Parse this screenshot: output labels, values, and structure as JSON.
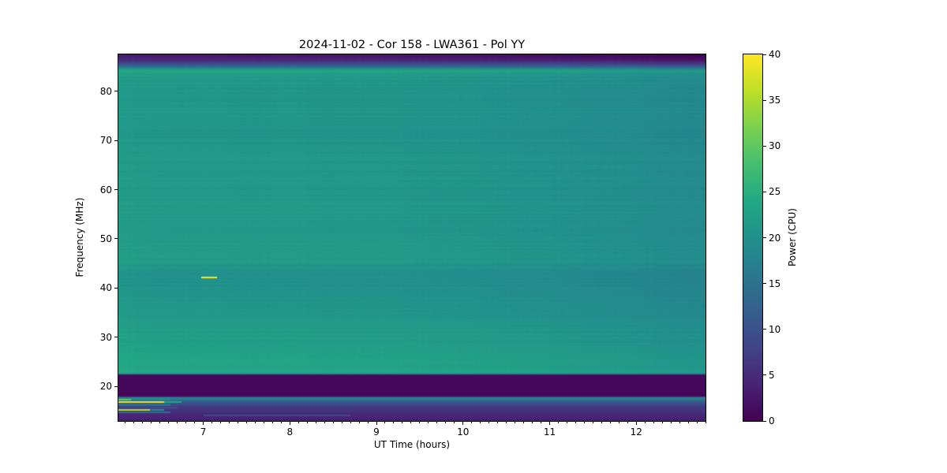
{
  "figure": {
    "background": "#ffffff",
    "text_color": "#000000",
    "spine_color": "#000000"
  },
  "chart_data": {
    "type": "heatmap",
    "title": "2024-11-02 - Cor 158 - LWA361 - Pol YY",
    "xlabel": "UT Time (hours)",
    "ylabel": "Frequency (MHz)",
    "colorbar_label": "Power (CPU)",
    "colormap": "viridis",
    "x_range": [
      6.02,
      12.8
    ],
    "y_range": [
      12.95,
      87.5
    ],
    "color_range": [
      0,
      40
    ],
    "x_ticks": [
      7,
      8,
      9,
      10,
      11,
      12
    ],
    "x_minor_tick_step": 0.1,
    "y_ticks": [
      20,
      30,
      40,
      50,
      60,
      70,
      80
    ],
    "colorbar_ticks": [
      0,
      5,
      10,
      15,
      20,
      25,
      30,
      35,
      40
    ],
    "grid": false,
    "legend": "none",
    "frequency_profile": [
      [
        13.0,
        3.2
      ],
      [
        13.5,
        3.8
      ],
      [
        14.0,
        4.2
      ],
      [
        14.5,
        4.8
      ],
      [
        14.9,
        5.5
      ],
      [
        15.2,
        6.0
      ],
      [
        15.5,
        6.5
      ],
      [
        15.8,
        7.0
      ],
      [
        16.1,
        8.0
      ],
      [
        16.4,
        9.0
      ],
      [
        16.7,
        10.5
      ],
      [
        17.05,
        13.0
      ],
      [
        17.35,
        16.5
      ],
      [
        17.7,
        17.5
      ],
      [
        17.85,
        8.0
      ],
      [
        18.0,
        0.8
      ],
      [
        22.3,
        0.8
      ],
      [
        22.45,
        12.0
      ],
      [
        22.7,
        23.6
      ],
      [
        23.3,
        23.3
      ],
      [
        24.5,
        22.9
      ],
      [
        26.0,
        22.6
      ],
      [
        28.0,
        22.2
      ],
      [
        30.0,
        21.9
      ],
      [
        33.0,
        21.4
      ],
      [
        35.0,
        20.9
      ],
      [
        38.0,
        20.6
      ],
      [
        40.5,
        20.0
      ],
      [
        42.0,
        19.8
      ],
      [
        43.8,
        20.2
      ],
      [
        45.5,
        21.3
      ],
      [
        48.0,
        21.5
      ],
      [
        52.0,
        21.0
      ],
      [
        56.0,
        21.2
      ],
      [
        60.0,
        20.8
      ],
      [
        64.0,
        21.0
      ],
      [
        68.0,
        20.8
      ],
      [
        72.0,
        20.5
      ],
      [
        76.0,
        20.9
      ],
      [
        80.0,
        20.6
      ],
      [
        83.0,
        21.2
      ],
      [
        83.6,
        22.0
      ],
      [
        84.2,
        23.5
      ],
      [
        84.8,
        16.0
      ],
      [
        85.4,
        10.0
      ],
      [
        86.0,
        6.0
      ],
      [
        86.6,
        3.5
      ],
      [
        87.4,
        2.2
      ]
    ],
    "time_modulation_applies_above_mhz": 22.5,
    "time_modulation": [
      [
        6.02,
        0.9
      ],
      [
        6.25,
        0.5
      ],
      [
        6.6,
        0.25
      ],
      [
        7.0,
        0.35
      ],
      [
        7.6,
        0.15
      ],
      [
        8.0,
        0.3
      ],
      [
        8.4,
        0.05
      ],
      [
        9.0,
        0.15
      ],
      [
        9.4,
        -0.1
      ],
      [
        10.0,
        -0.25
      ],
      [
        10.5,
        -0.55
      ],
      [
        11.0,
        -0.8
      ],
      [
        11.4,
        -1.2
      ],
      [
        11.9,
        -1.4
      ],
      [
        12.3,
        -1.9
      ],
      [
        12.8,
        -2.1
      ]
    ],
    "features": [
      {
        "name": "streak-42mhz",
        "t": [
          6.98,
          7.16
        ],
        "f": [
          41.95,
          42.35
        ],
        "power": 40
      },
      {
        "name": "streak-16.8mhz-bright",
        "t": [
          6.02,
          6.55
        ],
        "f": [
          16.62,
          16.98
        ],
        "power": 39
      },
      {
        "name": "streak-16.8mhz-tail",
        "t": [
          6.55,
          6.75
        ],
        "f": [
          16.62,
          16.98
        ],
        "power": 24
      },
      {
        "name": "tip-17.4mhz",
        "t": [
          6.02,
          6.17
        ],
        "f": [
          17.15,
          17.5
        ],
        "power": 30
      },
      {
        "name": "patch-17.5mhz",
        "t": [
          6.17,
          6.62
        ],
        "f": [
          17.1,
          17.8
        ],
        "power": 19
      },
      {
        "name": "patch-16.2mhz",
        "t": [
          6.02,
          6.62
        ],
        "f": [
          16.05,
          16.45
        ],
        "power": 14
      },
      {
        "name": "streak-15.2mhz-bright",
        "t": [
          6.02,
          6.38
        ],
        "f": [
          15.05,
          15.4
        ],
        "power": 36
      },
      {
        "name": "streak-15.2mhz-tail",
        "t": [
          6.38,
          6.55
        ],
        "f": [
          15.05,
          15.4
        ],
        "power": 20
      },
      {
        "name": "patch-15.6mhz",
        "t": [
          6.02,
          6.7
        ],
        "f": [
          15.45,
          15.75
        ],
        "power": 12
      },
      {
        "name": "patch-14.7mhz",
        "t": [
          6.02,
          6.62
        ],
        "f": [
          14.55,
          14.95
        ],
        "power": 14
      },
      {
        "name": "faint-line-14mhz",
        "t": [
          7.0,
          8.7
        ],
        "f": [
          13.95,
          14.2
        ],
        "power": 9
      }
    ]
  }
}
